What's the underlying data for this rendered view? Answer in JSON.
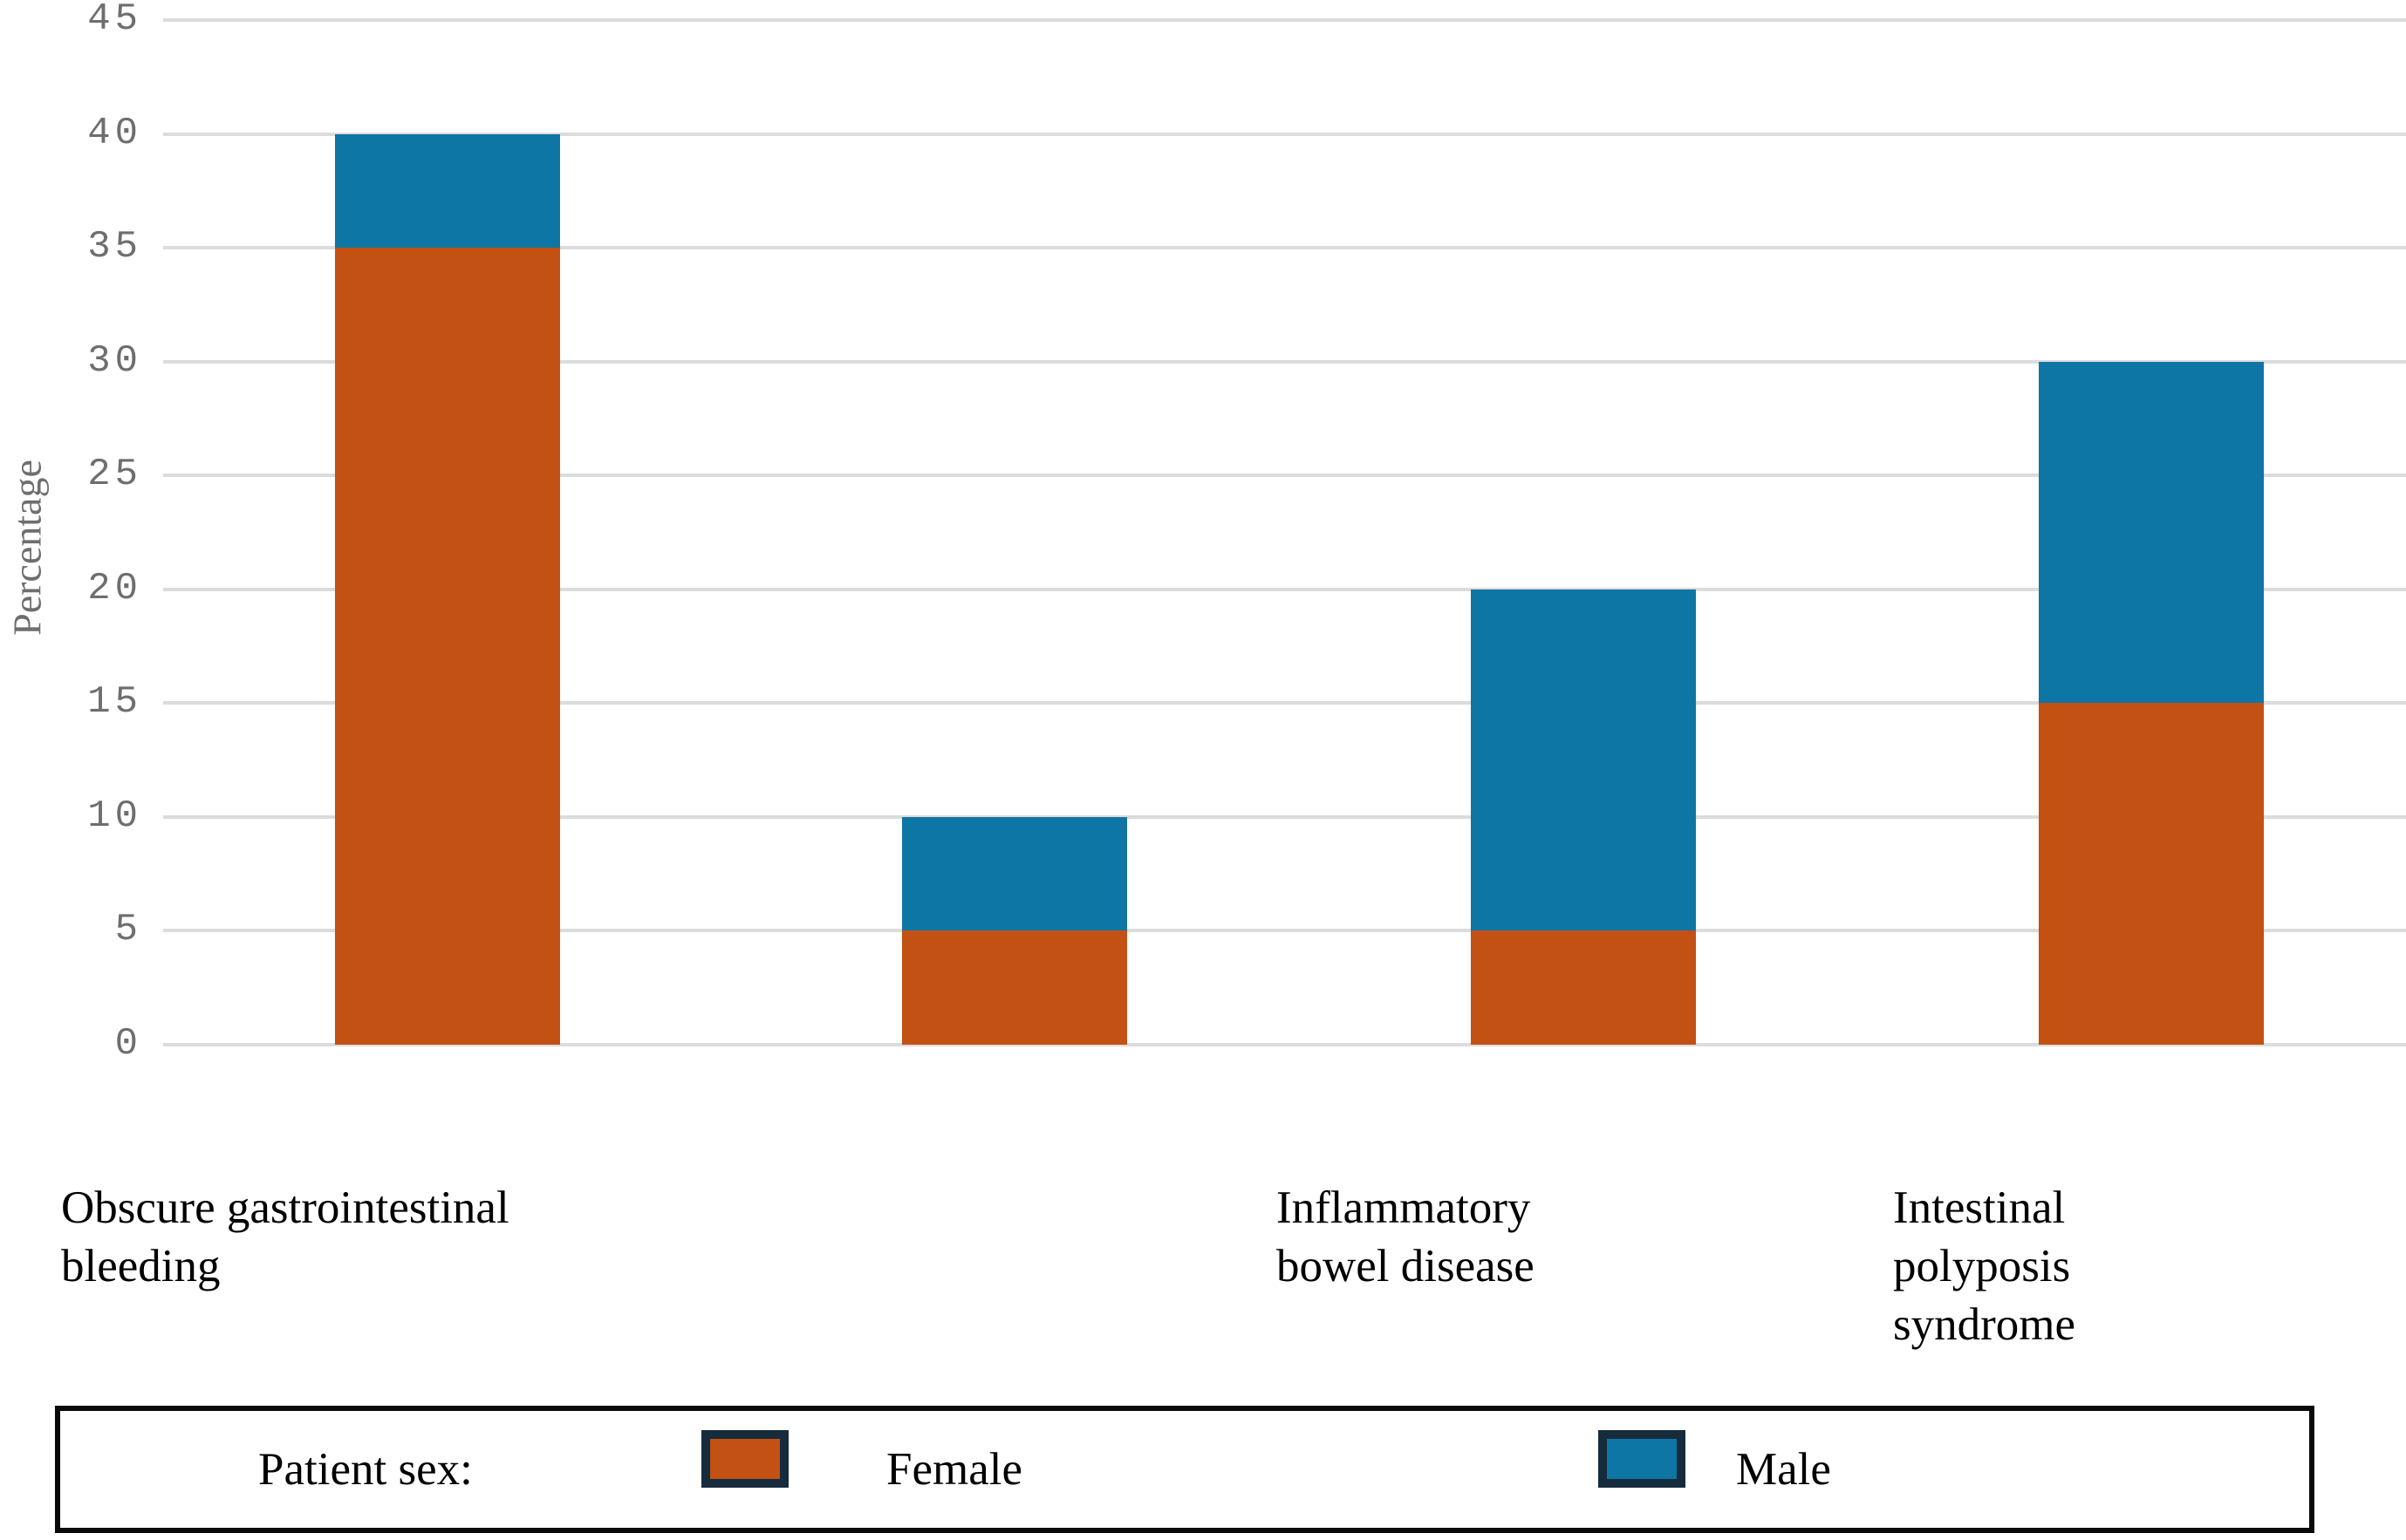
{
  "chart_data": {
    "type": "bar",
    "stacked": true,
    "title": "",
    "xlabel": "",
    "ylabel": "Percentage",
    "ylim": [
      0,
      45
    ],
    "yticks": [
      0,
      5,
      10,
      15,
      20,
      25,
      30,
      35,
      40,
      45
    ],
    "grid": "horizontal",
    "legend_position": "bottom",
    "categories": [
      "Obscure gastrointestinal bleeding",
      "",
      "Inflammatory bowel disease",
      "Intestinal polyposis syndrome"
    ],
    "category_label_lines": [
      [
        "Obscure gastrointestinal",
        "bleeding"
      ],
      [],
      [
        "Inflammatory",
        "bowel disease"
      ],
      [
        "Intestinal",
        "polyposis",
        "syndrome"
      ]
    ],
    "series": [
      {
        "name": "Female",
        "color": "#C25113",
        "values": [
          35,
          5,
          5,
          15
        ]
      },
      {
        "name": "Male",
        "color": "#0E76A4",
        "values": [
          5,
          5,
          15,
          15
        ]
      }
    ],
    "legend": {
      "title": "Patient sex:",
      "entries": [
        {
          "label": "Female",
          "color": "#C25113"
        },
        {
          "label": "Male",
          "color": "#0E76A4"
        }
      ]
    },
    "colors": {
      "gridline": "#DCDCDC",
      "axis_text": "#6E6E6E",
      "category_text": "#000000",
      "legend_swatch_border": "#162B3C",
      "legend_box_border": "#0A0A0A",
      "background": "#FFFFFF"
    }
  }
}
